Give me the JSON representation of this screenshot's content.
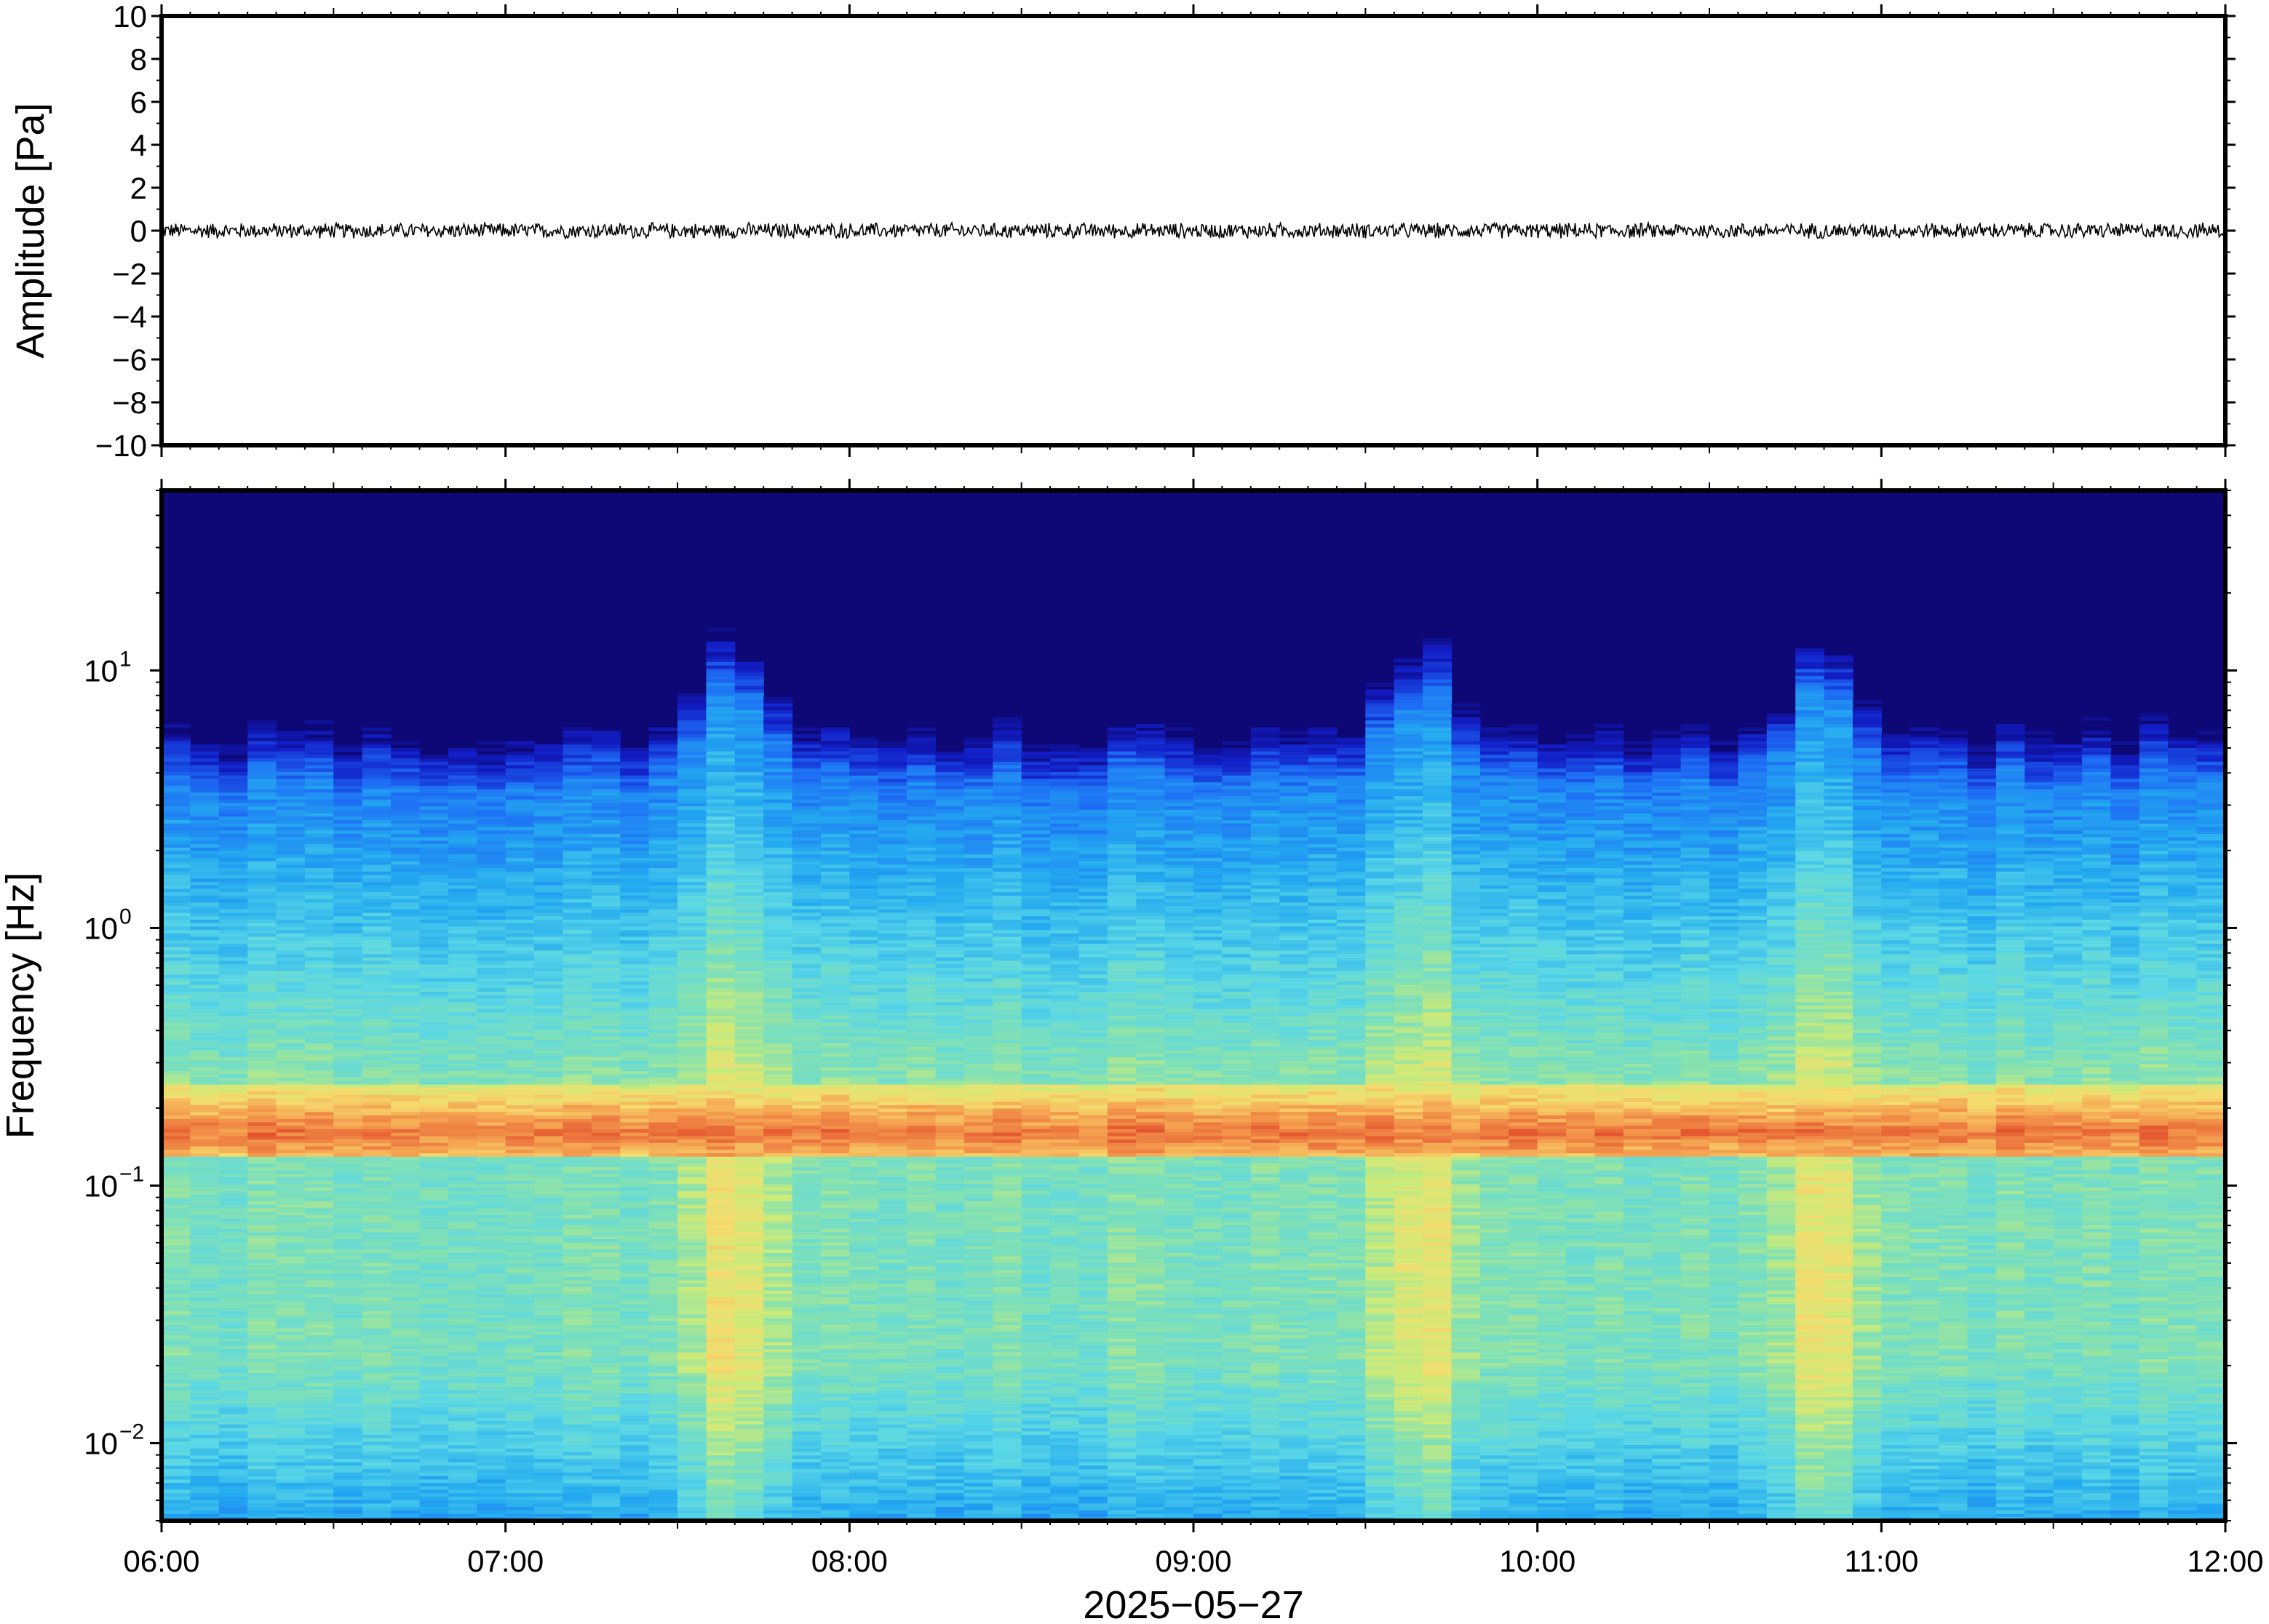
{
  "chart_data": [
    {
      "type": "line",
      "panel": "waveform",
      "ylabel": "Amplitude [Pa]",
      "ylim": [
        -10,
        10
      ],
      "yticks": [
        "10",
        "8",
        "6",
        "4",
        "2",
        "0",
        "−2",
        "−4",
        "−6",
        "−8",
        "−10"
      ],
      "series": [
        {
          "trace_color": "#000000",
          "x": [
            "06:00",
            "06:30",
            "07:00",
            "07:30",
            "08:00",
            "08:30",
            "09:00",
            "09:30",
            "10:00",
            "10:30",
            "11:00",
            "11:30",
            "12:00"
          ],
          "values": [
            0,
            0,
            0,
            0,
            0,
            0,
            0,
            0,
            0,
            0,
            0,
            0,
            0
          ],
          "peak_abs": 0.4
        }
      ],
      "grid": false
    },
    {
      "type": "heatmap",
      "panel": "spectrogram",
      "ylabel": "Frequency [Hz]",
      "xlabel": "2025−05−27",
      "y_scale": "log",
      "ylim": [
        0.005,
        50
      ],
      "yticks": [
        {
          "value": 0.01,
          "label": "10",
          "exp": "−2"
        },
        {
          "value": 0.1,
          "label": "10",
          "exp": "−1"
        },
        {
          "value": 1,
          "label": "10",
          "exp": "0"
        },
        {
          "value": 10,
          "label": "10",
          "exp": "1"
        }
      ],
      "xlim": [
        "06:00",
        "12:00"
      ],
      "xticks": [
        "06:00",
        "07:00",
        "08:00",
        "09:00",
        "10:00",
        "11:00",
        "12:00"
      ],
      "colormap": "jet",
      "colors": {
        "low": "#0d0875",
        "mid": "#7fdcb5",
        "high": "#f07a3a"
      },
      "features": {
        "microseism_band_hz": [
          0.13,
          0.22
        ],
        "microseism_peak_hz": 0.16,
        "noise_bursts": [
          "07:40",
          "09:40",
          "10:50"
        ]
      },
      "grid": false
    }
  ]
}
